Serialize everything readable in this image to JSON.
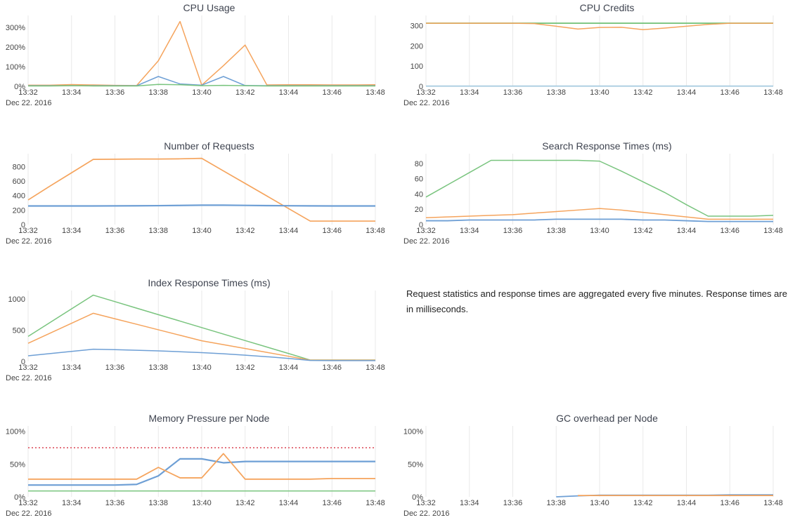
{
  "palette": {
    "blue": "#6e9fd5",
    "orange": "#f5a45d",
    "green": "#79c47e",
    "red_threshold": "#e4737e",
    "gridline": "#e9e9e9",
    "tick_text": "#444444",
    "title_text": "#3f4450"
  },
  "note": {
    "text": "Request statistics and response times are aggregated every five minutes. Response times are in milliseconds."
  },
  "chart_data": [
    {
      "type": "line",
      "title": "CPU Usage",
      "date_label": "Dec 22. 2016",
      "x_tick_labels": [
        "13:32",
        "13:34",
        "13:36",
        "13:38",
        "13:40",
        "13:42",
        "13:44",
        "13:46",
        "13:48"
      ],
      "x_max_minute": 16,
      "ymax": 350,
      "y_ticks": [
        {
          "value": 0,
          "label": "0%"
        },
        {
          "value": 100,
          "label": "100%"
        },
        {
          "value": 200,
          "label": "200%"
        },
        {
          "value": 300,
          "label": "300%"
        }
      ],
      "series": [
        {
          "name": "orange",
          "color": "#f5a45d",
          "width": 1.5,
          "values": [
            6,
            6,
            9,
            7,
            5,
            4,
            130,
            330,
            6,
            105,
            210,
            7,
            8,
            8,
            7,
            7,
            8
          ]
        },
        {
          "name": "blue",
          "color": "#6e9fd5",
          "width": 1.5,
          "values": [
            3,
            3,
            3,
            3,
            3,
            3,
            50,
            12,
            6,
            50,
            4,
            3,
            3,
            3,
            3,
            3,
            3
          ]
        },
        {
          "name": "green",
          "color": "#79c47e",
          "width": 1.5,
          "values": [
            2,
            2,
            3,
            2,
            2,
            2,
            10,
            8,
            3,
            5,
            3,
            2,
            2,
            2,
            2,
            2,
            2
          ]
        }
      ]
    },
    {
      "type": "line",
      "title": "CPU Credits",
      "date_label": "Dec 22. 2016",
      "x_tick_labels": [
        "13:32",
        "13:34",
        "13:36",
        "13:38",
        "13:40",
        "13:42",
        "13:44",
        "13:46",
        "13:48"
      ],
      "x_max_minute": 16,
      "ymax": 340,
      "y_ticks": [
        {
          "value": 0,
          "label": "0"
        },
        {
          "value": 100,
          "label": "100"
        },
        {
          "value": 200,
          "label": "200"
        },
        {
          "value": 300,
          "label": "300"
        }
      ],
      "series": [
        {
          "name": "green",
          "color": "#79c47e",
          "width": 1.8,
          "values": [
            312,
            312,
            312,
            312,
            312,
            312,
            312,
            312,
            312,
            312,
            312,
            312,
            312,
            312,
            312,
            312,
            312
          ]
        },
        {
          "name": "orange",
          "color": "#f5a45d",
          "width": 1.5,
          "values": [
            312,
            312,
            312,
            312,
            312,
            310,
            297,
            283,
            291,
            292,
            280,
            288,
            297,
            306,
            312,
            312,
            312
          ]
        },
        {
          "name": "blue",
          "color": "#aacde0",
          "width": 1.8,
          "values": [
            1,
            1,
            1,
            1,
            1,
            1,
            1,
            1,
            1,
            1,
            1,
            1,
            1,
            1,
            1,
            1,
            1
          ]
        }
      ]
    },
    {
      "type": "line",
      "title": "Number of Requests",
      "date_label": "Dec 22. 2016",
      "x_tick_labels": [
        "13:32",
        "13:34",
        "13:36",
        "13:38",
        "13:40",
        "13:42",
        "13:44",
        "13:46",
        "13:48"
      ],
      "x_max_minute": 16,
      "ymax": 950,
      "y_ticks": [
        {
          "value": 0,
          "label": "0"
        },
        {
          "value": 200,
          "label": "200"
        },
        {
          "value": 400,
          "label": "400"
        },
        {
          "value": 600,
          "label": "600"
        },
        {
          "value": 800,
          "label": "800"
        }
      ],
      "series": [
        {
          "name": "orange",
          "color": "#f5a45d",
          "width": 1.7,
          "values": [
            340,
            530,
            715,
            900,
            903,
            905,
            905,
            908,
            915,
            741,
            568,
            395,
            221,
            48,
            48,
            48,
            48
          ]
        },
        {
          "name": "blue",
          "color": "#6e9fd5",
          "width": 2.2,
          "values": [
            257,
            257,
            257,
            257,
            258,
            259,
            261,
            264,
            268,
            268,
            265,
            262,
            260,
            258,
            257,
            257,
            257
          ]
        }
      ]
    },
    {
      "type": "line",
      "title": "Search Response Times (ms)",
      "date_label": "Dec 22. 2016",
      "x_tick_labels": [
        "13:32",
        "13:34",
        "13:36",
        "13:38",
        "13:40",
        "13:42",
        "13:44",
        "13:46",
        "13:48"
      ],
      "x_max_minute": 16,
      "ymax": 90,
      "y_ticks": [
        {
          "value": 0,
          "label": "0"
        },
        {
          "value": 20,
          "label": "20"
        },
        {
          "value": 40,
          "label": "40"
        },
        {
          "value": 60,
          "label": "60"
        },
        {
          "value": 80,
          "label": "80"
        }
      ],
      "series": [
        {
          "name": "green",
          "color": "#79c47e",
          "width": 1.5,
          "values": [
            36,
            52,
            68,
            84,
            84,
            84,
            84,
            84,
            83,
            70,
            56,
            42,
            26,
            11,
            11,
            11,
            12
          ]
        },
        {
          "name": "orange",
          "color": "#f5a45d",
          "width": 1.5,
          "values": [
            9,
            10,
            11,
            12,
            13,
            15,
            17,
            19,
            21,
            19,
            16,
            13,
            10,
            7,
            7,
            7,
            7
          ]
        },
        {
          "name": "blue",
          "color": "#6e9fd5",
          "width": 1.8,
          "values": [
            5,
            5,
            6,
            6,
            6,
            6,
            7,
            7,
            7,
            7,
            6,
            6,
            5,
            4,
            4,
            4,
            4
          ]
        }
      ]
    },
    {
      "type": "line",
      "title": "Index Response Times (ms)",
      "date_label": "Dec 22. 2016",
      "x_tick_labels": [
        "13:32",
        "13:34",
        "13:36",
        "13:38",
        "13:40",
        "13:42",
        "13:44",
        "13:46",
        "13:48"
      ],
      "x_max_minute": 16,
      "ymax": 1100,
      "y_ticks": [
        {
          "value": 0,
          "label": "0"
        },
        {
          "value": 500,
          "label": "500"
        },
        {
          "value": 1000,
          "label": "1000"
        }
      ],
      "series": [
        {
          "name": "green",
          "color": "#79c47e",
          "width": 1.5,
          "values": [
            400,
            620,
            840,
            1060,
            956,
            852,
            748,
            645,
            541,
            437,
            333,
            230,
            126,
            22,
            22,
            22,
            22
          ]
        },
        {
          "name": "orange",
          "color": "#f5a45d",
          "width": 1.5,
          "values": [
            290,
            450,
            610,
            770,
            682,
            594,
            506,
            418,
            330,
            268,
            206,
            144,
            82,
            20,
            20,
            20,
            20
          ]
        },
        {
          "name": "blue",
          "color": "#6e9fd5",
          "width": 1.5,
          "values": [
            90,
            125,
            160,
            195,
            188,
            178,
            168,
            155,
            140,
            122,
            100,
            75,
            48,
            15,
            12,
            12,
            12
          ]
        }
      ]
    },
    {
      "type": "line",
      "title": "Memory Pressure per Node",
      "date_label": "Dec 22. 2016",
      "x_tick_labels": [
        "13:32",
        "13:34",
        "13:36",
        "13:38",
        "13:40",
        "13:42",
        "13:44",
        "13:46",
        "13:48"
      ],
      "x_max_minute": 16,
      "ymax": 105,
      "y_ticks": [
        {
          "value": 0,
          "label": "0%"
        },
        {
          "value": 50,
          "label": "50%"
        },
        {
          "value": 100,
          "label": "100%"
        }
      ],
      "series": [
        {
          "name": "red-threshold",
          "color": "#e4737e",
          "width": 2,
          "dash": "2,3",
          "values": [
            75,
            75,
            75,
            75,
            75,
            75,
            75,
            75,
            75,
            75,
            75,
            75,
            75,
            75,
            75,
            75,
            75
          ]
        },
        {
          "name": "blue",
          "color": "#6e9fd5",
          "width": 2.2,
          "values": [
            18,
            18,
            18,
            18,
            18,
            19,
            32,
            58,
            58,
            52,
            54,
            54,
            54,
            54,
            54,
            54,
            54
          ]
        },
        {
          "name": "orange",
          "color": "#f5a45d",
          "width": 1.8,
          "values": [
            27,
            27,
            27,
            27,
            27,
            27,
            45,
            29,
            29,
            66,
            27,
            27,
            27,
            27,
            28,
            28,
            28
          ]
        },
        {
          "name": "green",
          "color": "#79c47e",
          "width": 1.5,
          "values": [
            9,
            9,
            9,
            9,
            9,
            9,
            9,
            9,
            9,
            9,
            9,
            9,
            9,
            9,
            9,
            9,
            9
          ]
        }
      ]
    },
    {
      "type": "line",
      "title": "GC overhead per Node",
      "date_label": "Dec 22. 2016",
      "x_tick_labels": [
        "13:32",
        "13:34",
        "13:36",
        "13:38",
        "13:40",
        "13:42",
        "13:44",
        "13:46",
        "13:48"
      ],
      "x_max_minute": 16,
      "ymax": 105,
      "y_ticks": [
        {
          "value": 0,
          "label": "0%"
        },
        {
          "value": 50,
          "label": "50%"
        },
        {
          "value": 100,
          "label": "100%"
        }
      ],
      "series": [
        {
          "name": "blue",
          "color": "#6e9fd5",
          "width": 1.8,
          "x_start": 6,
          "values": [
            0,
            1.5,
            2.5,
            2.5,
            2.5,
            2.5,
            2.5,
            2.5,
            3,
            3,
            3
          ]
        },
        {
          "name": "orange",
          "color": "#f5a45d",
          "width": 1.8,
          "x_start": 7,
          "values": [
            2,
            2,
            2,
            2,
            2,
            2,
            2,
            2,
            2,
            2
          ]
        }
      ]
    }
  ]
}
